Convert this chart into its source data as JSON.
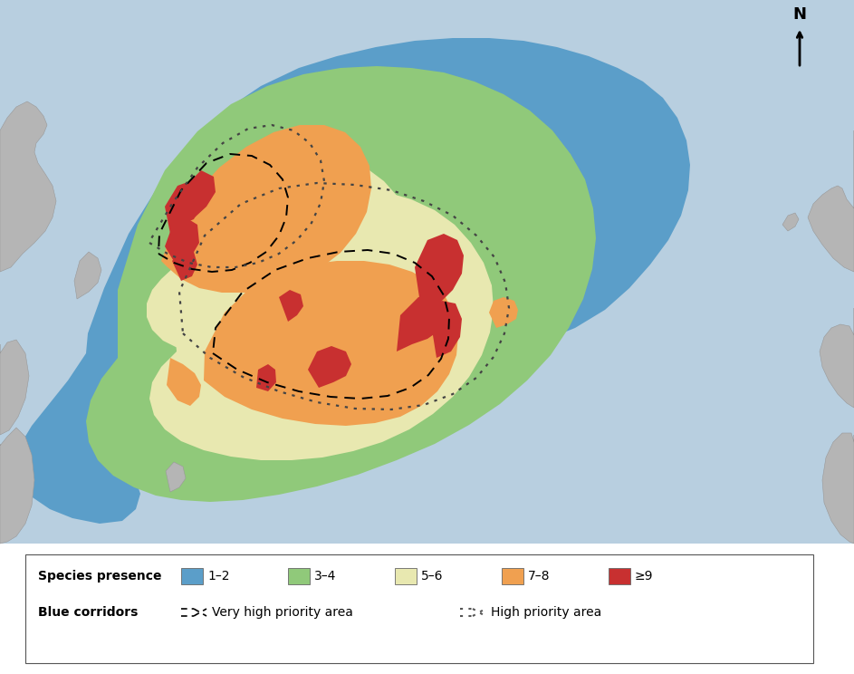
{
  "colors": {
    "ocean_bg": "#b8cfe0",
    "land": "#b5b5b5",
    "land_edge": "#999999",
    "blue_12": "#5b9ec9",
    "green_34": "#90c97a",
    "yellow_56": "#e8e8b0",
    "orange_78": "#f0a050",
    "red_9plus": "#c83030"
  },
  "legend": {
    "species_presence_label": "Species presence",
    "blue_corridors_label": "Blue corridors",
    "categories": [
      "1–2",
      "3–4",
      "5–6",
      "7–8",
      "≥9"
    ],
    "very_high_priority": "Very high priority area",
    "high_priority": "High priority area"
  },
  "figsize": [
    9.43,
    7.44
  ],
  "dpi": 100
}
